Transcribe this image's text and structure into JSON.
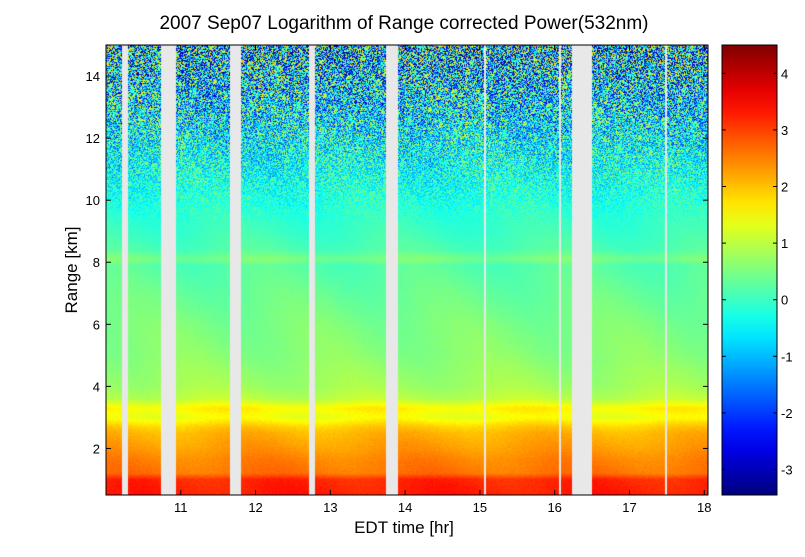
{
  "chart_data": {
    "type": "heatmap",
    "title": "2007 Sep07  Logarithm of Range corrected Power(532nm)",
    "xlabel": "EDT time [hr]",
    "ylabel": "Range [km]",
    "xlim": [
      10.0,
      18.05
    ],
    "ylim": [
      0.5,
      15.0
    ],
    "x_ticks": [
      11,
      12,
      13,
      14,
      15,
      16,
      17,
      18
    ],
    "y_ticks": [
      2,
      4,
      6,
      8,
      10,
      12,
      14
    ],
    "colorbar": {
      "lim": [
        -3.45,
        4.5
      ],
      "ticks": [
        -3,
        -2,
        -1,
        0,
        1,
        2,
        3,
        4
      ],
      "colormap": "jet"
    },
    "data_gaps_hr": [
      [
        10.22,
        10.3
      ],
      [
        10.73,
        10.93
      ],
      [
        11.66,
        11.8
      ],
      [
        12.72,
        12.8
      ],
      [
        13.75,
        13.9
      ],
      [
        15.05,
        15.08
      ],
      [
        16.06,
        16.09
      ],
      [
        16.23,
        16.5
      ],
      [
        17.47,
        17.5
      ]
    ],
    "profile_km_to_logpower": [
      [
        0.5,
        3.3
      ],
      [
        1.0,
        3.2
      ],
      [
        1.2,
        2.6
      ],
      [
        1.6,
        2.5
      ],
      [
        2.0,
        2.3
      ],
      [
        2.5,
        2.1
      ],
      [
        2.7,
        1.9
      ],
      [
        3.0,
        1.4
      ],
      [
        3.3,
        1.6
      ],
      [
        3.6,
        1.0
      ],
      [
        4.0,
        0.8
      ],
      [
        5.0,
        0.6
      ],
      [
        6.0,
        0.5
      ],
      [
        7.0,
        0.35
      ],
      [
        7.9,
        0.2
      ],
      [
        8.1,
        0.5
      ],
      [
        8.4,
        0.15
      ],
      [
        9.0,
        0.0
      ],
      [
        10.0,
        -0.2
      ],
      [
        11.0,
        -0.35
      ],
      [
        12.0,
        -0.5
      ],
      [
        13.0,
        -0.65
      ],
      [
        14.0,
        -0.8
      ],
      [
        15.0,
        -0.9
      ]
    ],
    "gap_color": "#e8e8e8"
  }
}
